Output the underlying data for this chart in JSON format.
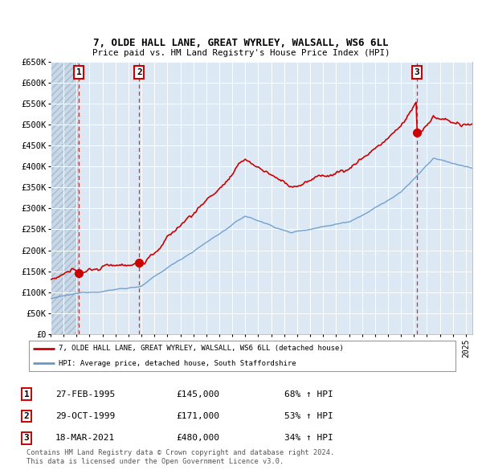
{
  "title1": "7, OLDE HALL LANE, GREAT WYRLEY, WALSALL, WS6 6LL",
  "title2": "Price paid vs. HM Land Registry's House Price Index (HPI)",
  "ylim": [
    0,
    650000
  ],
  "yticks": [
    0,
    50000,
    100000,
    150000,
    200000,
    250000,
    300000,
    350000,
    400000,
    450000,
    500000,
    550000,
    600000,
    650000
  ],
  "ytick_labels": [
    "£0",
    "£50K",
    "£100K",
    "£150K",
    "£200K",
    "£250K",
    "£300K",
    "£350K",
    "£400K",
    "£450K",
    "£500K",
    "£550K",
    "£600K",
    "£650K"
  ],
  "xlim_start": 1993.0,
  "xlim_end": 2025.5,
  "sales": [
    {
      "label": "1",
      "year": 1995.16,
      "price": 145000,
      "date_str": "27-FEB-1995",
      "price_str": "£145,000",
      "pct_str": "68% ↑ HPI"
    },
    {
      "label": "2",
      "year": 1999.83,
      "price": 171000,
      "date_str": "29-OCT-1999",
      "price_str": "£171,000",
      "pct_str": "53% ↑ HPI"
    },
    {
      "label": "3",
      "year": 2021.21,
      "price": 480000,
      "date_str": "18-MAR-2021",
      "price_str": "£480,000",
      "pct_str": "34% ↑ HPI"
    }
  ],
  "legend_line1": "7, OLDE HALL LANE, GREAT WYRLEY, WALSALL, WS6 6LL (detached house)",
  "legend_line2": "HPI: Average price, detached house, South Staffordshire",
  "footnote1": "Contains HM Land Registry data © Crown copyright and database right 2024.",
  "footnote2": "This data is licensed under the Open Government Licence v3.0.",
  "red_color": "#cc0000",
  "blue_color": "#6699cc",
  "bg_plot": "#dce9f5",
  "grid_color": "#ffffff",
  "hatch_bg": "#c8d8e8"
}
